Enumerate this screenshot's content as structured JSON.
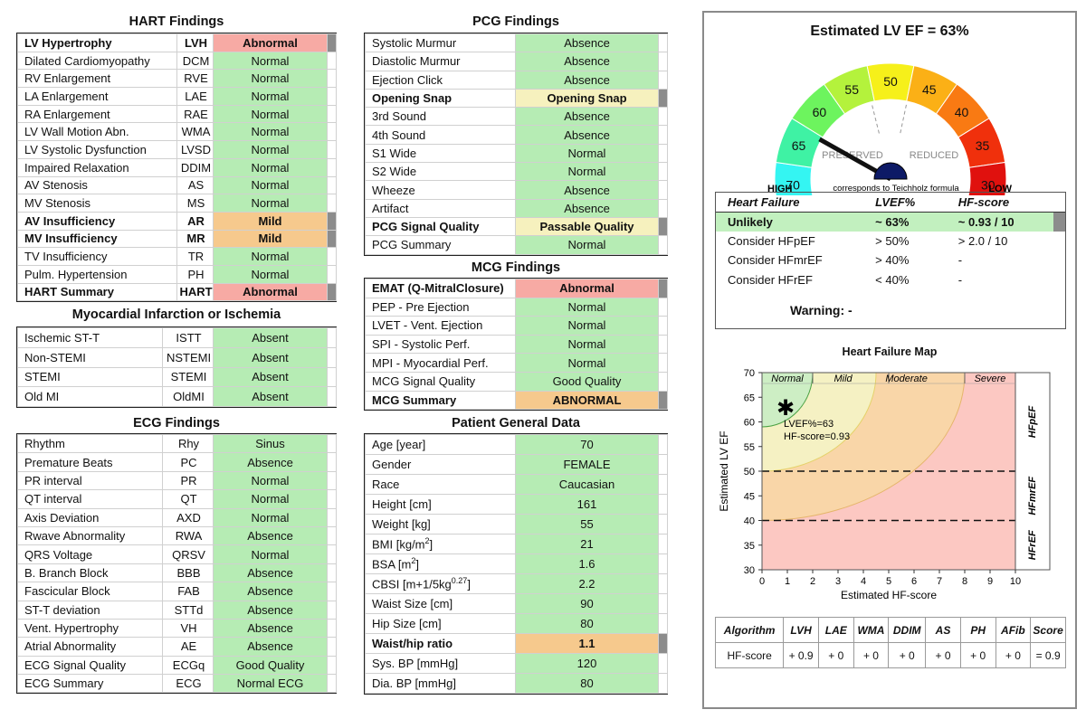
{
  "hart": {
    "title": "HART Findings",
    "rows": [
      {
        "name": "LV Hypertrophy",
        "abbr": "LVH",
        "value": "Abnormal"
      },
      {
        "name": "Dilated Cardiomyopathy",
        "abbr": "DCM",
        "value": "Normal"
      },
      {
        "name": "RV Enlargement",
        "abbr": "RVE",
        "value": "Normal"
      },
      {
        "name": "LA Enlargement",
        "abbr": "LAE",
        "value": "Normal"
      },
      {
        "name": "RA Enlargement",
        "abbr": "RAE",
        "value": "Normal"
      },
      {
        "name": "LV Wall Motion Abn.",
        "abbr": "WMA",
        "value": "Normal"
      },
      {
        "name": "LV Systolic Dysfunction",
        "abbr": "LVSD",
        "value": "Normal"
      },
      {
        "name": "Impaired Relaxation",
        "abbr": "DDIM",
        "value": "Normal"
      },
      {
        "name": "AV Stenosis",
        "abbr": "AS",
        "value": "Normal"
      },
      {
        "name": "MV Stenosis",
        "abbr": "MS",
        "value": "Normal"
      },
      {
        "name": "AV Insufficiency",
        "abbr": "AR",
        "value": "Mild"
      },
      {
        "name": "MV Insufficiency",
        "abbr": "MR",
        "value": "Mild"
      },
      {
        "name": "TV Insufficiency",
        "abbr": "TR",
        "value": "Normal"
      },
      {
        "name": "Pulm. Hypertension",
        "abbr": "PH",
        "value": "Normal"
      },
      {
        "name": "HART Summary",
        "abbr": "HART",
        "value": "Abnormal"
      }
    ]
  },
  "mi": {
    "title": "Myocardial Infarction or Ischemia",
    "rows": [
      {
        "name": "Ischemic ST-T",
        "abbr": "ISTT",
        "value": "Absent"
      },
      {
        "name": "Non-STEMI",
        "abbr": "NSTEMI",
        "value": "Absent"
      },
      {
        "name": "STEMI",
        "abbr": "STEMI",
        "value": "Absent"
      },
      {
        "name": "Old MI",
        "abbr": "OldMI",
        "value": "Absent"
      }
    ]
  },
  "ecg": {
    "title": "ECG Findings",
    "rows": [
      {
        "name": "Rhythm",
        "abbr": "Rhy",
        "value": "Sinus"
      },
      {
        "name": "Premature Beats",
        "abbr": "PC",
        "value": "Absence"
      },
      {
        "name": "PR interval",
        "abbr": "PR",
        "value": "Normal"
      },
      {
        "name": "QT interval",
        "abbr": "QT",
        "value": "Normal"
      },
      {
        "name": "Axis Deviation",
        "abbr": "AXD",
        "value": "Normal"
      },
      {
        "name": "Rwave Abnormality",
        "abbr": "RWA",
        "value": "Absence"
      },
      {
        "name": "QRS Voltage",
        "abbr": "QRSV",
        "value": "Normal"
      },
      {
        "name": "B. Branch Block",
        "abbr": "BBB",
        "value": "Absence"
      },
      {
        "name": "Fascicular Block",
        "abbr": "FAB",
        "value": "Absence"
      },
      {
        "name": "ST-T deviation",
        "abbr": "STTd",
        "value": "Absence"
      },
      {
        "name": "Vent. Hypertrophy",
        "abbr": "VH",
        "value": "Absence"
      },
      {
        "name": "Atrial Abnormality",
        "abbr": "AE",
        "value": "Absence"
      },
      {
        "name": "ECG Signal Quality",
        "abbr": "ECGq",
        "value": "Good Quality"
      },
      {
        "name": "ECG Summary",
        "abbr": "ECG",
        "value": "Normal ECG"
      }
    ]
  },
  "pcg": {
    "title": "PCG Findings",
    "rows": [
      {
        "name": "Systolic Murmur",
        "value": "Absence"
      },
      {
        "name": "Diastolic Murmur",
        "value": "Absence"
      },
      {
        "name": "Ejection Click",
        "value": "Absence"
      },
      {
        "name": "Opening Snap",
        "value": "Opening Snap"
      },
      {
        "name": "3rd Sound",
        "value": "Absence"
      },
      {
        "name": "4th Sound",
        "value": "Absence"
      },
      {
        "name": "S1 Wide",
        "value": "Normal"
      },
      {
        "name": "S2 Wide",
        "value": "Normal"
      },
      {
        "name": "Wheeze",
        "value": "Absence"
      },
      {
        "name": "Artifact",
        "value": "Absence"
      },
      {
        "name": "PCG Signal Quality",
        "value": "Passable Quality"
      },
      {
        "name": "PCG Summary",
        "value": "Normal"
      }
    ]
  },
  "mcg": {
    "title": "MCG Findings",
    "rows": [
      {
        "name": "EMAT (Q-MitralClosure)",
        "value": "Abnormal"
      },
      {
        "name": "PEP - Pre Ejection",
        "value": "Normal"
      },
      {
        "name": "LVET - Vent. Ejection",
        "value": "Normal"
      },
      {
        "name": "SPI - Systolic Perf.",
        "value": "Normal"
      },
      {
        "name": "MPI - Myocardial Perf.",
        "value": "Normal"
      },
      {
        "name": "MCG Signal Quality",
        "value": "Good Quality"
      },
      {
        "name": "MCG Summary",
        "value": "ABNORMAL"
      }
    ]
  },
  "patient": {
    "title": "Patient General Data",
    "rows": [
      {
        "name": "Age [year]",
        "value": "70"
      },
      {
        "name": "Gender",
        "value": "FEMALE"
      },
      {
        "name": "Race",
        "value": "Caucasian"
      },
      {
        "name": "Height [cm]",
        "value": "161"
      },
      {
        "name": "Weight [kg]",
        "value": "55"
      },
      {
        "name": "BMI [kg/m",
        "sup": "2",
        "tail": "]",
        "value": "21"
      },
      {
        "name": "BSA [m",
        "sup": "2",
        "tail": "]",
        "value": "1.6"
      },
      {
        "name": "CBSI [m+1/5kg",
        "sup": "0.27",
        "tail": "]",
        "value": "2.2"
      },
      {
        "name": "Waist Size [cm]",
        "value": "90"
      },
      {
        "name": "Hip Size [cm]",
        "value": "80"
      },
      {
        "name": "Waist/hip ratio",
        "value": "1.1"
      },
      {
        "name": "Sys. BP [mmHg]",
        "value": "120"
      },
      {
        "name": "Dia. BP [mmHg]",
        "value": "80"
      }
    ]
  },
  "gauge": {
    "title": "Estimated LV EF = 63%",
    "value": 63,
    "segments": [
      {
        "label": "70",
        "color": "#34f5f2"
      },
      {
        "label": "65",
        "color": "#3ff2a4"
      },
      {
        "label": "60",
        "color": "#6df45e"
      },
      {
        "label": "55",
        "color": "#b4f23c"
      },
      {
        "label": "50",
        "color": "#f6f01a"
      },
      {
        "label": "45",
        "color": "#fbb016"
      },
      {
        "label": "40",
        "color": "#f97a13"
      },
      {
        "label": "35",
        "color": "#f0300c"
      },
      {
        "label": "30",
        "color": "#e0110e"
      }
    ],
    "preserved": "PRESERVED",
    "reduced": "REDUCED",
    "high": "HIGH",
    "low": "LOW",
    "formula": "corresponds to Teichholz formula"
  },
  "heart_failure": {
    "headers": [
      "Heart Failure",
      "LVEF%",
      "HF-score"
    ],
    "rows": [
      {
        "label": "Unlikely",
        "lvef": "~ 63%",
        "score": "~ 0.93 / 10"
      },
      {
        "label": "Consider HFpEF",
        "lvef": "> 50%",
        "score": "> 2.0 / 10"
      },
      {
        "label": "Consider HFmrEF",
        "lvef": "> 40%",
        "score": "-"
      },
      {
        "label": "Consider HFrEF",
        "lvef": "< 40%",
        "score": "-"
      }
    ],
    "warning": "Warning: -"
  },
  "hf_map": {
    "title": "Heart Failure Map",
    "xlabel": "Estimated HF-score",
    "ylabel": "Estimated LV EF",
    "xlim": [
      0,
      10
    ],
    "ylim": [
      30,
      70
    ],
    "xticks": [
      "0",
      "1",
      "2",
      "3",
      "4",
      "5",
      "6",
      "7",
      "8",
      "9",
      "10"
    ],
    "yticks": [
      "30",
      "35",
      "40",
      "45",
      "50",
      "55",
      "60",
      "65",
      "70"
    ],
    "zones": [
      "Normal",
      "Mild",
      "Moderate",
      "Severe"
    ],
    "bands": [
      "HFpEF",
      "HFmrEF",
      "HFrEF"
    ],
    "point": {
      "x": 0.93,
      "y": 63
    },
    "annot1": "LVEF%=63",
    "annot2": "HF-score=0.93"
  },
  "score_table": {
    "headers": [
      "Algorithm",
      "LVH",
      "LAE",
      "WMA",
      "DDIM",
      "AS",
      "PH",
      "AFib",
      "Score"
    ],
    "row": [
      "HF-score",
      "+ 0.9",
      "+ 0",
      "+ 0",
      "+ 0",
      "+ 0",
      "+ 0",
      "+ 0",
      "= 0.9"
    ]
  }
}
